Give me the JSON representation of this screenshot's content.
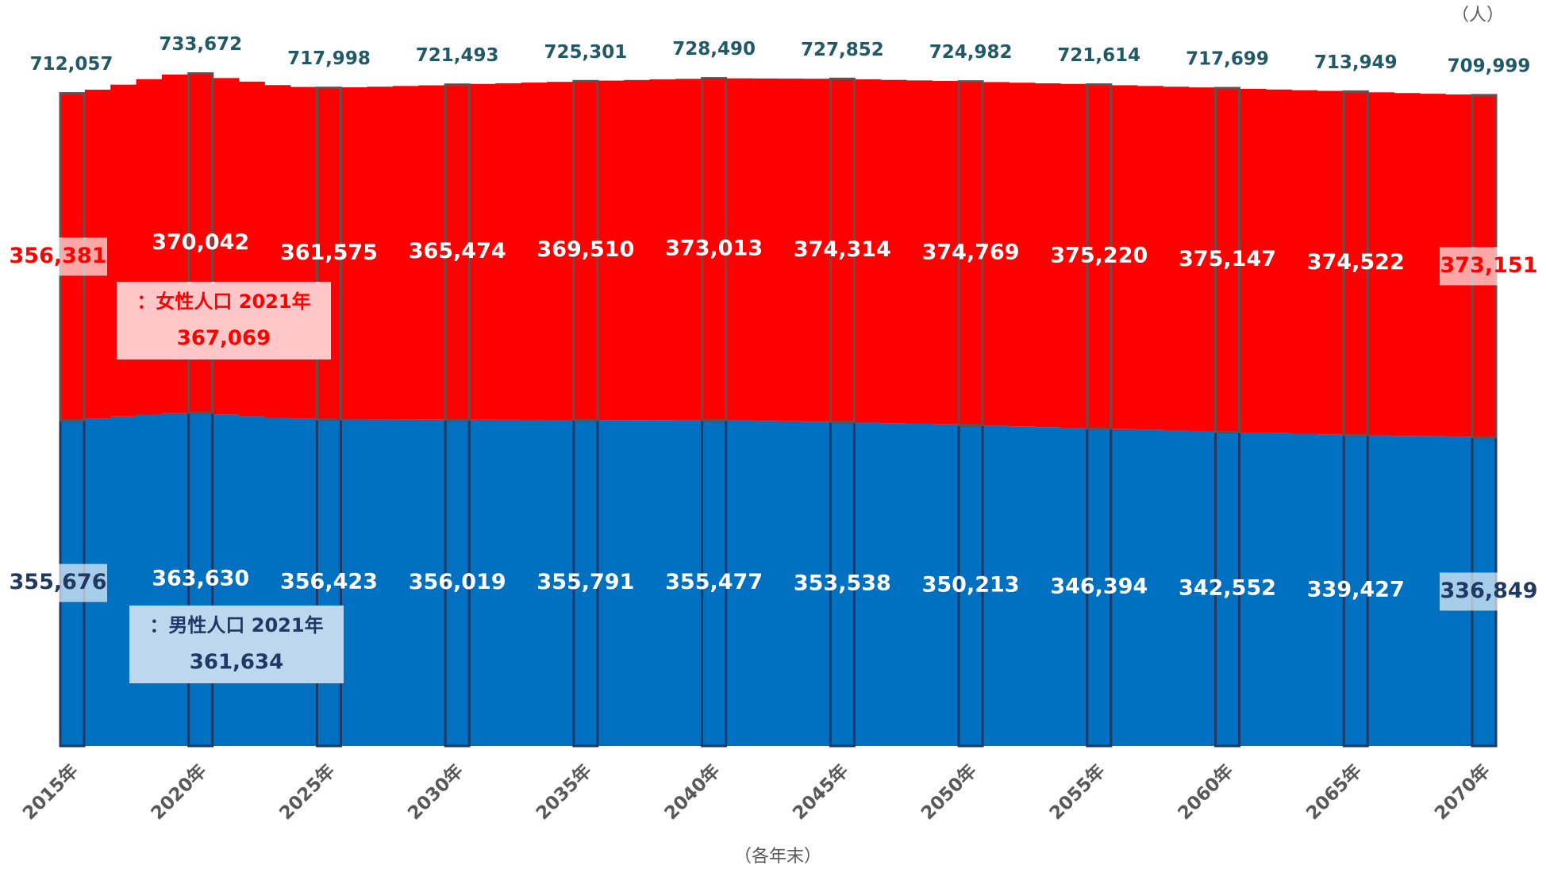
{
  "chart_data": {
    "type": "stacked_bar",
    "unit_label": "（人）",
    "x_label": "（各年末）",
    "categories": [
      "2015年",
      null,
      null,
      null,
      null,
      "2020年",
      null,
      null,
      null,
      null,
      "2025年",
      null,
      null,
      null,
      null,
      "2030年",
      null,
      null,
      null,
      null,
      "2035年",
      null,
      null,
      null,
      null,
      "2040年",
      null,
      null,
      null,
      null,
      "2045年",
      null,
      null,
      null,
      null,
      "2050年",
      null,
      null,
      null,
      null,
      "2055年",
      null,
      null,
      null,
      null,
      "2060年",
      null,
      null,
      null,
      null,
      "2065年",
      null,
      null,
      null,
      null,
      "2070年"
    ],
    "ylim": [
      0,
      800000
    ],
    "series": [
      {
        "name": "男性人口",
        "color": "#0070c0",
        "values": [
          355676,
          357500,
          359500,
          361500,
          363000,
          363630,
          361634,
          359800,
          358000,
          357000,
          356423,
          356300,
          356200,
          356150,
          356080,
          356019,
          355970,
          355920,
          355870,
          355830,
          355791,
          355730,
          355670,
          355600,
          355540,
          355477,
          355100,
          354700,
          354300,
          353900,
          353538,
          352870,
          352200,
          351540,
          350880,
          350213,
          349450,
          348680,
          347920,
          347160,
          346394,
          345630,
          344860,
          344090,
          343320,
          342552,
          341930,
          341300,
          340680,
          340050,
          339427,
          338910,
          338400,
          337880,
          337370,
          336849
        ],
        "value_labels": [
          "355,676",
          null,
          null,
          null,
          null,
          "363,630",
          null,
          null,
          null,
          null,
          "356,423",
          null,
          null,
          null,
          null,
          "356,019",
          null,
          null,
          null,
          null,
          "355,791",
          null,
          null,
          null,
          null,
          "355,477",
          null,
          null,
          null,
          null,
          "353,538",
          null,
          null,
          null,
          null,
          "350,213",
          null,
          null,
          null,
          null,
          "346,394",
          null,
          null,
          null,
          null,
          "342,552",
          null,
          null,
          null,
          null,
          "339,427",
          null,
          null,
          null,
          null,
          "336,849"
        ]
      },
      {
        "name": "女性人口",
        "color": "#ff0000",
        "values": [
          356381,
          358500,
          362000,
          366000,
          369500,
          370042,
          367069,
          365000,
          363000,
          362000,
          361575,
          362300,
          363100,
          363900,
          364700,
          365474,
          366300,
          367100,
          367900,
          368700,
          369510,
          370200,
          370900,
          371600,
          372300,
          373013,
          373270,
          373530,
          373790,
          374050,
          374314,
          374400,
          374490,
          374580,
          374680,
          374769,
          374860,
          374950,
          375040,
          375130,
          375220,
          375200,
          375190,
          375170,
          375160,
          375147,
          375020,
          374900,
          374770,
          374650,
          374522,
          374250,
          373970,
          373700,
          373420,
          373151
        ],
        "value_labels": [
          "356,381",
          null,
          null,
          null,
          null,
          "370,042",
          null,
          null,
          null,
          null,
          "361,575",
          null,
          null,
          null,
          null,
          "365,474",
          null,
          null,
          null,
          null,
          "369,510",
          null,
          null,
          null,
          null,
          "373,013",
          null,
          null,
          null,
          null,
          "374,314",
          null,
          null,
          null,
          null,
          "374,769",
          null,
          null,
          null,
          null,
          "375,220",
          null,
          null,
          null,
          null,
          "375,147",
          null,
          null,
          null,
          null,
          "374,522",
          null,
          null,
          null,
          null,
          "373,151"
        ]
      }
    ],
    "totals": [
      712057,
      null,
      null,
      null,
      null,
      733672,
      null,
      null,
      null,
      null,
      717998,
      null,
      null,
      null,
      null,
      721493,
      null,
      null,
      null,
      null,
      725301,
      null,
      null,
      null,
      null,
      728490,
      null,
      null,
      null,
      null,
      727852,
      null,
      null,
      null,
      null,
      724982,
      null,
      null,
      null,
      null,
      721614,
      null,
      null,
      null,
      null,
      717699,
      null,
      null,
      null,
      null,
      713949,
      null,
      null,
      null,
      null,
      709999
    ],
    "total_labels": [
      "712,057",
      null,
      null,
      null,
      null,
      "733,672",
      null,
      null,
      null,
      null,
      "717,998",
      null,
      null,
      null,
      null,
      "721,493",
      null,
      null,
      null,
      null,
      "725,301",
      null,
      null,
      null,
      null,
      "728,490",
      null,
      null,
      null,
      null,
      "727,852",
      null,
      null,
      null,
      null,
      "724,982",
      null,
      null,
      null,
      null,
      "721,614",
      null,
      null,
      null,
      null,
      "717,699",
      null,
      null,
      null,
      null,
      "713,949",
      null,
      null,
      null,
      null,
      "709,999"
    ],
    "annotations": [
      {
        "text": "：女性人口 2021年",
        "value_label": "367,069"
      },
      {
        "text": "：男性人口 2021年",
        "value_label": "361,634"
      }
    ]
  }
}
